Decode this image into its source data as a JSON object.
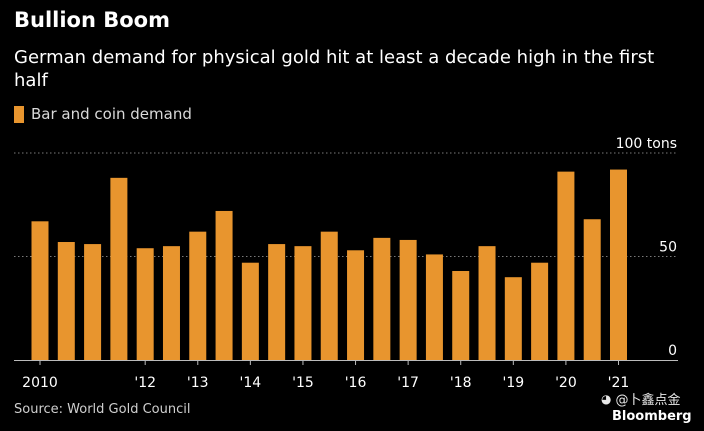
{
  "header": {
    "title": "Bullion Boom",
    "subtitle": "German demand for physical gold hit at least a decade high in the first half"
  },
  "legend": {
    "label": "Bar and coin demand"
  },
  "footer": {
    "source": "Source: World Gold Council",
    "watermark": "@卜鑫点金",
    "brand": "Bloomberg"
  },
  "colors": {
    "bar": "#e8952e",
    "grid": "#7a7a7a",
    "axis": "#bbbbbb",
    "text": "#ffffff"
  },
  "chart_data": {
    "type": "bar",
    "title": "Bullion Boom",
    "subtitle": "German demand for physical gold hit at least a decade high in the first half",
    "unit": "tons",
    "categories": [
      "2010 H1",
      "2010 H2",
      "2011 H1",
      "2011 H2",
      "2012 H1",
      "2012 H2",
      "2013 H1",
      "2013 H2",
      "2014 H1",
      "2014 H2",
      "2015 H1",
      "2015 H2",
      "2016 H1",
      "2016 H2",
      "2017 H1",
      "2017 H2",
      "2018 H1",
      "2018 H2",
      "2019 H1",
      "2019 H2",
      "2020 H1",
      "2020 H2",
      "2021 H1"
    ],
    "series": [
      {
        "name": "Bar and coin demand",
        "values": [
          67,
          57,
          56,
          88,
          54,
          55,
          62,
          72,
          47,
          56,
          55,
          62,
          53,
          59,
          58,
          51,
          43,
          55,
          40,
          47,
          91,
          68,
          92
        ]
      }
    ],
    "x_tick_labels": [
      "2010",
      "'12",
      "'13",
      "'14",
      "'15",
      "'16",
      "'17",
      "'18",
      "'19",
      "'20",
      "'21"
    ],
    "x_tick_index": [
      0,
      4,
      6,
      8,
      10,
      12,
      14,
      16,
      18,
      20,
      22
    ],
    "y_ticks": [
      {
        "value": 100,
        "label": "100 tons"
      },
      {
        "value": 50,
        "label": "50"
      },
      {
        "value": 0,
        "label": "0"
      }
    ],
    "ylim": [
      0,
      100
    ],
    "grid": true,
    "legend_position": "top-left"
  }
}
